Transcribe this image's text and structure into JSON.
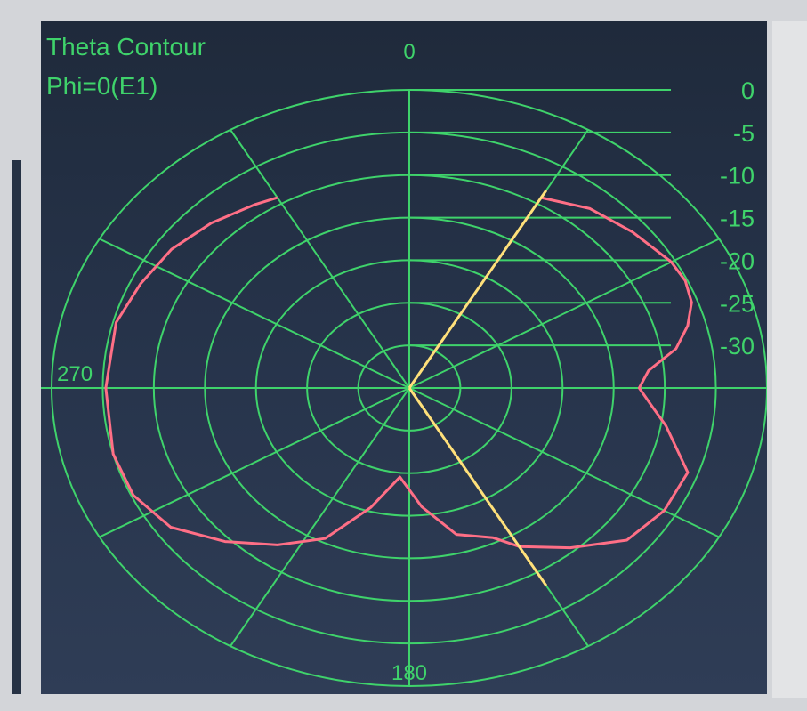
{
  "chart_data": {
    "type": "polar-line",
    "title": "Theta Contour",
    "subtitle": "Phi=0(E1)",
    "radial_ticks": [
      "0",
      "-5",
      "-10",
      "-15",
      "-20",
      "-25",
      "-30"
    ],
    "radial_range_db": [
      -35,
      0
    ],
    "angle_labels": [
      {
        "angle": 0,
        "text": "0"
      },
      {
        "angle": 270,
        "text": "270"
      },
      {
        "angle": 180,
        "text": "180"
      }
    ],
    "spoke_angles_deg": [
      0,
      30,
      60,
      90,
      120,
      150,
      180,
      210,
      240,
      270,
      300,
      330
    ],
    "grid": true,
    "series": [
      {
        "color": "#ff6f86",
        "points_deg_db": [
          [
            30,
            -9.2
          ],
          [
            40,
            -7.5
          ],
          [
            50,
            -6.5
          ],
          [
            60,
            -5.4
          ],
          [
            65,
            -5.2
          ],
          [
            70,
            -5.6
          ],
          [
            75,
            -6.8
          ],
          [
            80,
            -8.5
          ],
          [
            85,
            -11.5
          ],
          [
            90,
            -12.5
          ],
          [
            95,
            -11.2
          ],
          [
            100,
            -9.5
          ],
          [
            110,
            -6.0
          ],
          [
            120,
            -6.2
          ],
          [
            130,
            -7.2
          ],
          [
            140,
            -10.5
          ],
          [
            150,
            -13.5
          ],
          [
            155,
            -15.6
          ],
          [
            165,
            -17.2
          ],
          [
            175,
            -21.0
          ],
          [
            185,
            -24.5
          ],
          [
            195,
            -20.5
          ],
          [
            205,
            -15.5
          ],
          [
            215,
            -12.5
          ],
          [
            225,
            -9.5
          ],
          [
            235,
            -6.5
          ],
          [
            245,
            -5.2
          ],
          [
            255,
            -5.0
          ],
          [
            270,
            -5.3
          ],
          [
            285,
            -5.3
          ],
          [
            295,
            -6.0
          ],
          [
            305,
            -6.6
          ],
          [
            315,
            -7.6
          ],
          [
            325,
            -8.7
          ],
          [
            330,
            -9.2
          ]
        ]
      },
      {
        "color": "#ffe07a",
        "points_deg_db": [
          [
            150,
            -35
          ],
          [
            150,
            -8.2
          ]
        ]
      },
      {
        "color": "#ffe07a",
        "points_deg_db": [
          [
            30,
            -35
          ],
          [
            30,
            -8.2
          ]
        ]
      }
    ]
  }
}
